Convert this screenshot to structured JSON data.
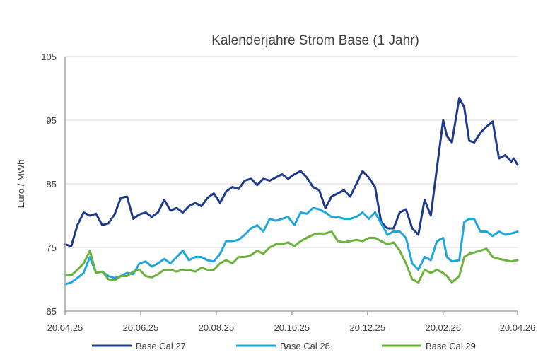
{
  "chart_data": {
    "type": "line",
    "title": "Kalenderjahre Strom Base (1 Jahr)",
    "xlabel": "",
    "ylabel": "Euro / MWh",
    "ylim": [
      65,
      105
    ],
    "yticks": [
      65,
      75,
      85,
      95,
      105
    ],
    "xlim": [
      0,
      365
    ],
    "x_tick_labels": [
      "20.04.25",
      "20.06.25",
      "20.08.25",
      "20.10.25",
      "20.12.25",
      "20.02.26",
      "20.04.26"
    ],
    "x_tick_days": [
      0,
      61,
      122,
      183,
      244,
      305,
      365
    ],
    "grid": "horizontal",
    "legend_position": "bottom",
    "x_days": [
      0,
      5,
      10,
      15,
      20,
      25,
      30,
      35,
      40,
      45,
      50,
      55,
      60,
      65,
      70,
      75,
      80,
      85,
      90,
      95,
      100,
      105,
      110,
      115,
      120,
      125,
      130,
      135,
      140,
      145,
      150,
      155,
      160,
      165,
      170,
      175,
      180,
      185,
      190,
      195,
      200,
      205,
      210,
      215,
      220,
      225,
      230,
      235,
      240,
      245,
      250,
      255,
      260,
      265,
      270,
      275,
      280,
      285,
      290,
      295,
      300,
      305,
      308,
      312,
      318,
      322,
      326,
      330,
      335,
      340,
      345,
      350,
      355,
      360,
      362,
      365
    ],
    "series": [
      {
        "name": "Base Cal 27",
        "color": "#1f3a8a",
        "values": [
          75.5,
          75.2,
          78.5,
          80.5,
          80.0,
          80.3,
          78.5,
          78.8,
          80.2,
          82.8,
          83.0,
          79.5,
          80.2,
          80.5,
          79.8,
          80.5,
          82.5,
          80.8,
          81.2,
          80.5,
          81.5,
          82.0,
          81.5,
          82.8,
          83.5,
          82.0,
          83.8,
          84.5,
          84.2,
          85.5,
          85.8,
          84.8,
          85.8,
          85.5,
          86.0,
          86.5,
          85.8,
          86.5,
          87.0,
          86.0,
          84.5,
          84.0,
          81.2,
          83.0,
          83.5,
          84.0,
          83.0,
          85.0,
          87.0,
          86.0,
          84.5,
          79.0,
          78.0,
          78.0,
          80.5,
          81.0,
          78.0,
          77.0,
          82.5,
          80.0,
          87.5,
          95.0,
          92.5,
          91.5,
          98.5,
          97.0,
          91.8,
          91.5,
          93.0,
          94.0,
          94.8,
          89.0,
          89.5,
          88.5,
          89.0,
          88.0
        ]
      },
      {
        "name": "Base Cal 28",
        "color": "#1fa6dc",
        "values": [
          69.2,
          69.5,
          70.2,
          71.0,
          73.5,
          71.0,
          71.2,
          70.5,
          70.2,
          70.5,
          71.0,
          70.8,
          72.5,
          72.8,
          72.0,
          72.5,
          73.2,
          72.5,
          73.5,
          74.5,
          73.0,
          73.5,
          73.5,
          73.0,
          72.8,
          74.0,
          76.0,
          76.0,
          76.2,
          77.0,
          78.0,
          78.5,
          77.5,
          79.5,
          79.2,
          79.5,
          79.8,
          78.5,
          80.5,
          80.3,
          81.2,
          81.0,
          80.5,
          79.8,
          79.8,
          79.5,
          79.5,
          79.8,
          80.5,
          79.5,
          80.5,
          78.8,
          77.0,
          77.5,
          77.5,
          76.5,
          72.5,
          71.5,
          73.5,
          73.0,
          76.0,
          76.5,
          73.5,
          72.8,
          73.0,
          79.0,
          79.5,
          79.5,
          77.5,
          77.5,
          76.8,
          77.5,
          77.0,
          77.2,
          77.3,
          77.5
        ]
      },
      {
        "name": "Base Cal 29",
        "color": "#6ab23c",
        "values": [
          70.8,
          70.6,
          71.5,
          72.5,
          74.5,
          71.0,
          71.2,
          70.0,
          69.8,
          70.5,
          70.5,
          71.2,
          71.5,
          70.5,
          70.3,
          70.8,
          71.5,
          71.5,
          71.2,
          71.5,
          71.5,
          71.2,
          71.8,
          71.5,
          71.5,
          72.5,
          73.0,
          72.5,
          73.5,
          73.5,
          73.8,
          74.5,
          74.0,
          75.0,
          75.5,
          75.5,
          75.8,
          75.2,
          76.0,
          76.5,
          77.0,
          77.2,
          77.2,
          77.5,
          76.0,
          75.8,
          76.0,
          76.2,
          76.0,
          76.5,
          76.5,
          76.0,
          75.5,
          75.8,
          74.5,
          72.5,
          70.0,
          69.5,
          71.5,
          71.0,
          71.5,
          71.0,
          70.5,
          69.5,
          70.5,
          73.5,
          74.0,
          74.2,
          74.5,
          74.8,
          73.5,
          73.2,
          73.0,
          72.8,
          72.9,
          73.0
        ]
      }
    ]
  }
}
